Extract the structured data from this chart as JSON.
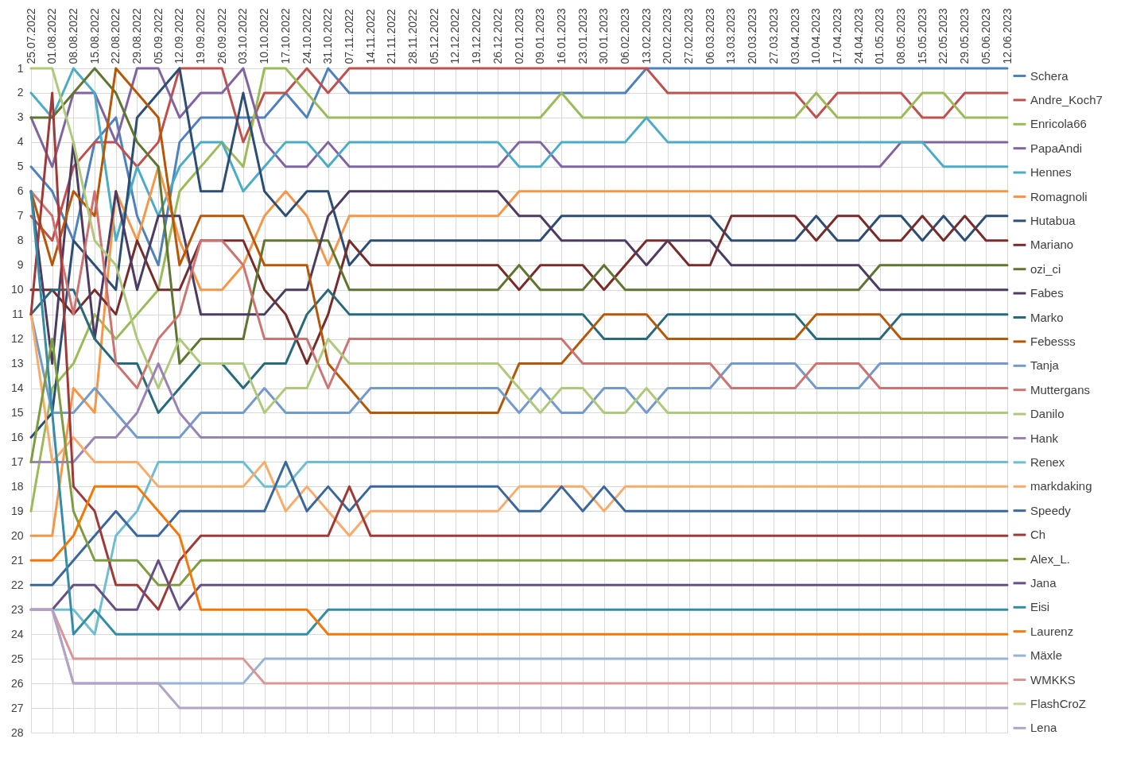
{
  "chart_data": {
    "type": "line",
    "categories": [
      "25.07.2022",
      "01.08.2022",
      "08.08.2022",
      "15.08.2022",
      "22.08.2022",
      "29.08.2022",
      "05.09.2022",
      "12.09.2022",
      "19.09.2022",
      "26.09.2022",
      "03.10.2022",
      "10.10.2022",
      "17.10.2022",
      "24.10.2022",
      "31.10.2022",
      "07.11.2022",
      "14.11.2022",
      "21.11.2022",
      "28.11.2022",
      "05.12.2022",
      "12.12.2022",
      "19.12.2022",
      "26.12.2022",
      "02.01.2023",
      "09.01.2023",
      "16.01.2023",
      "23.01.2023",
      "30.01.2023",
      "06.02.2023",
      "13.02.2023",
      "20.02.2023",
      "27.02.2023",
      "06.03.2023",
      "13.03.2023",
      "20.03.2023",
      "27.03.2023",
      "03.04.2023",
      "10.04.2023",
      "17.04.2023",
      "24.04.2023",
      "01.05.2023",
      "08.05.2023",
      "15.05.2023",
      "22.05.2023",
      "29.05.2023",
      "05.06.2023",
      "12.06.2023"
    ],
    "ylim": [
      28,
      1
    ],
    "yticks": [
      1,
      2,
      3,
      4,
      5,
      6,
      7,
      8,
      9,
      10,
      11,
      12,
      13,
      14,
      15,
      16,
      17,
      18,
      19,
      20,
      21,
      22,
      23,
      24,
      25,
      26,
      27,
      28
    ],
    "grid": true,
    "legend": "right",
    "line_style": "solid",
    "series": [
      {
        "name": "Schera",
        "color": "#4f81bd",
        "values": [
          5,
          6,
          8,
          4,
          3,
          7,
          9,
          4,
          3,
          3,
          3,
          3,
          2,
          3,
          1,
          2,
          2,
          2,
          2,
          2,
          2,
          2,
          2,
          2,
          2,
          2,
          2,
          2,
          2,
          1,
          1,
          1,
          1,
          1,
          1,
          1,
          1,
          1,
          1,
          1,
          1,
          1,
          1,
          1,
          1,
          1,
          1
        ]
      },
      {
        "name": "Andre_Koch7",
        "color": "#c0504d",
        "values": [
          7,
          8,
          5,
          4,
          4,
          5,
          4,
          1,
          1,
          1,
          4,
          2,
          2,
          1,
          2,
          1,
          1,
          1,
          1,
          1,
          1,
          1,
          1,
          1,
          1,
          1,
          1,
          1,
          1,
          1,
          2,
          2,
          2,
          2,
          2,
          2,
          2,
          3,
          2,
          2,
          2,
          2,
          3,
          3,
          2,
          2,
          2
        ]
      },
      {
        "name": "Enricola66",
        "color": "#9bbb59",
        "values": [
          19,
          14,
          13,
          11,
          12,
          11,
          10,
          6,
          5,
          4,
          5,
          1,
          1,
          2,
          3,
          3,
          3,
          3,
          3,
          3,
          3,
          3,
          3,
          3,
          3,
          2,
          3,
          3,
          3,
          3,
          3,
          3,
          3,
          3,
          3,
          3,
          3,
          2,
          3,
          3,
          3,
          3,
          2,
          2,
          3,
          3,
          3
        ]
      },
      {
        "name": "PapaAndi",
        "color": "#8064a2",
        "values": [
          3,
          5,
          2,
          2,
          4,
          1,
          1,
          3,
          2,
          2,
          1,
          4,
          5,
          5,
          4,
          5,
          5,
          5,
          5,
          5,
          5,
          5,
          5,
          4,
          4,
          5,
          5,
          5,
          5,
          5,
          5,
          5,
          5,
          5,
          5,
          5,
          5,
          5,
          5,
          5,
          5,
          4,
          4,
          4,
          4,
          4,
          4
        ]
      },
      {
        "name": "Hennes",
        "color": "#4bacc6",
        "values": [
          2,
          3,
          1,
          2,
          8,
          5,
          7,
          5,
          4,
          4,
          6,
          5,
          4,
          4,
          5,
          4,
          4,
          4,
          4,
          4,
          4,
          4,
          4,
          5,
          5,
          4,
          4,
          4,
          4,
          3,
          4,
          4,
          4,
          4,
          4,
          4,
          4,
          4,
          4,
          4,
          4,
          4,
          4,
          5,
          5,
          5,
          5
        ]
      },
      {
        "name": "Romagnoli",
        "color": "#f79646",
        "values": [
          20,
          20,
          14,
          15,
          6,
          8,
          5,
          8,
          10,
          10,
          9,
          7,
          6,
          7,
          9,
          7,
          7,
          7,
          7,
          7,
          7,
          7,
          7,
          6,
          6,
          6,
          6,
          6,
          6,
          6,
          6,
          6,
          6,
          6,
          6,
          6,
          6,
          6,
          6,
          6,
          6,
          6,
          6,
          6,
          6,
          6,
          6
        ]
      },
      {
        "name": "Hutabua",
        "color": "#2c4d75",
        "values": [
          16,
          15,
          8,
          9,
          10,
          3,
          2,
          1,
          6,
          6,
          2,
          6,
          7,
          6,
          6,
          9,
          8,
          8,
          8,
          8,
          8,
          8,
          8,
          8,
          8,
          7,
          7,
          7,
          7,
          7,
          7,
          7,
          7,
          8,
          8,
          8,
          8,
          7,
          8,
          8,
          7,
          7,
          8,
          7,
          8,
          7,
          7
        ]
      },
      {
        "name": "Mariano",
        "color": "#772c2a",
        "values": [
          10,
          10,
          11,
          10,
          11,
          8,
          10,
          10,
          8,
          8,
          8,
          10,
          11,
          13,
          11,
          8,
          9,
          9,
          9,
          9,
          9,
          9,
          9,
          10,
          9,
          9,
          9,
          10,
          9,
          8,
          8,
          9,
          9,
          7,
          7,
          7,
          7,
          8,
          7,
          7,
          8,
          8,
          7,
          8,
          7,
          8,
          8
        ]
      },
      {
        "name": "ozi_ci",
        "color": "#5f7530",
        "values": [
          3,
          3,
          2,
          1,
          2,
          4,
          5,
          13,
          12,
          12,
          12,
          8,
          8,
          8,
          8,
          10,
          10,
          10,
          10,
          10,
          10,
          10,
          10,
          9,
          10,
          10,
          10,
          9,
          10,
          10,
          10,
          10,
          10,
          10,
          10,
          10,
          10,
          10,
          10,
          10,
          9,
          9,
          9,
          9,
          9,
          9,
          9
        ]
      },
      {
        "name": "Fabes",
        "color": "#4d3b62",
        "values": [
          6,
          13,
          4,
          12,
          6,
          10,
          7,
          7,
          11,
          11,
          11,
          11,
          10,
          10,
          7,
          6,
          6,
          6,
          6,
          6,
          6,
          6,
          6,
          7,
          7,
          8,
          8,
          8,
          8,
          9,
          8,
          8,
          8,
          9,
          9,
          9,
          9,
          9,
          9,
          9,
          10,
          10,
          10,
          10,
          10,
          10,
          10
        ]
      },
      {
        "name": "Marko",
        "color": "#276a7c",
        "values": [
          11,
          10,
          10,
          12,
          13,
          13,
          15,
          14,
          13,
          13,
          14,
          13,
          13,
          11,
          10,
          11,
          11,
          11,
          11,
          11,
          11,
          11,
          11,
          11,
          11,
          11,
          11,
          12,
          12,
          12,
          11,
          11,
          11,
          11,
          11,
          11,
          11,
          12,
          12,
          12,
          12,
          11,
          11,
          11,
          11,
          11,
          11
        ]
      },
      {
        "name": "Febesss",
        "color": "#b65708",
        "values": [
          6,
          9,
          6,
          7,
          1,
          2,
          3,
          9,
          7,
          7,
          7,
          9,
          9,
          9,
          13,
          14,
          15,
          15,
          15,
          15,
          15,
          15,
          15,
          13,
          13,
          13,
          12,
          11,
          11,
          11,
          12,
          12,
          12,
          12,
          12,
          12,
          12,
          11,
          11,
          11,
          11,
          12,
          12,
          12,
          12,
          12,
          12
        ]
      },
      {
        "name": "Tanja",
        "color": "#729aca",
        "values": [
          11,
          15,
          15,
          14,
          15,
          16,
          16,
          16,
          15,
          15,
          15,
          14,
          15,
          15,
          15,
          15,
          14,
          14,
          14,
          14,
          14,
          14,
          14,
          15,
          14,
          15,
          15,
          14,
          14,
          15,
          14,
          14,
          14,
          13,
          13,
          13,
          13,
          14,
          14,
          14,
          13,
          13,
          13,
          13,
          13,
          13,
          13
        ]
      },
      {
        "name": "Muttergans",
        "color": "#cd7371",
        "values": [
          6,
          7,
          11,
          6,
          13,
          14,
          12,
          11,
          8,
          8,
          9,
          12,
          12,
          12,
          14,
          12,
          12,
          12,
          12,
          12,
          12,
          12,
          12,
          12,
          12,
          12,
          13,
          13,
          13,
          13,
          13,
          13,
          13,
          14,
          14,
          14,
          14,
          13,
          13,
          13,
          14,
          14,
          14,
          14,
          14,
          14,
          14
        ]
      },
      {
        "name": "Danilo",
        "color": "#afc97a",
        "values": [
          1,
          1,
          4,
          8,
          9,
          12,
          14,
          12,
          13,
          13,
          13,
          15,
          14,
          14,
          12,
          13,
          13,
          13,
          13,
          13,
          13,
          13,
          13,
          14,
          15,
          14,
          14,
          15,
          15,
          14,
          15,
          15,
          15,
          15,
          15,
          15,
          15,
          15,
          15,
          15,
          15,
          15,
          15,
          15,
          15,
          15,
          15
        ]
      },
      {
        "name": "Hank",
        "color": "#9983b5",
        "values": [
          17,
          17,
          17,
          16,
          16,
          15,
          13,
          15,
          16,
          16,
          16,
          16,
          16,
          16,
          16,
          16,
          16,
          16,
          16,
          16,
          16,
          16,
          16,
          16,
          16,
          16,
          16,
          16,
          16,
          16,
          16,
          16,
          16,
          16,
          16,
          16,
          16,
          16,
          16,
          16,
          16,
          16,
          16,
          16,
          16,
          16,
          16
        ]
      },
      {
        "name": "Renex",
        "color": "#6fbdd1",
        "values": [
          23,
          23,
          23,
          24,
          20,
          19,
          17,
          17,
          17,
          17,
          17,
          18,
          18,
          17,
          17,
          17,
          17,
          17,
          17,
          17,
          17,
          17,
          17,
          17,
          17,
          17,
          17,
          17,
          17,
          17,
          17,
          17,
          17,
          17,
          17,
          17,
          17,
          17,
          17,
          17,
          17,
          17,
          17,
          17,
          17,
          17,
          17
        ]
      },
      {
        "name": "markdaking",
        "color": "#f9ab6b",
        "values": [
          11,
          17,
          16,
          17,
          17,
          17,
          18,
          18,
          18,
          18,
          18,
          17,
          19,
          18,
          19,
          20,
          19,
          19,
          19,
          19,
          19,
          19,
          19,
          18,
          18,
          18,
          18,
          19,
          18,
          18,
          18,
          18,
          18,
          18,
          18,
          18,
          18,
          18,
          18,
          18,
          18,
          18,
          18,
          18,
          18,
          18,
          18
        ]
      },
      {
        "name": "Speedy",
        "color": "#3a679c",
        "values": [
          22,
          22,
          21,
          20,
          19,
          20,
          20,
          19,
          19,
          19,
          19,
          19,
          17,
          19,
          18,
          19,
          18,
          18,
          18,
          18,
          18,
          18,
          18,
          19,
          19,
          18,
          19,
          18,
          19,
          19,
          19,
          19,
          19,
          19,
          19,
          19,
          19,
          19,
          19,
          19,
          19,
          19,
          19,
          19,
          19,
          19,
          19
        ]
      },
      {
        "name": "Ch",
        "color": "#9e3a38",
        "values": [
          11,
          2,
          18,
          19,
          22,
          22,
          23,
          21,
          20,
          20,
          20,
          20,
          20,
          20,
          20,
          18,
          20,
          20,
          20,
          20,
          20,
          20,
          20,
          20,
          20,
          20,
          20,
          20,
          20,
          20,
          20,
          20,
          20,
          20,
          20,
          20,
          20,
          20,
          20,
          20,
          20,
          20,
          20,
          20,
          20,
          20,
          20
        ]
      },
      {
        "name": "Alex_L.",
        "color": "#7e9c40",
        "values": [
          17,
          12,
          19,
          21,
          21,
          21,
          22,
          22,
          21,
          21,
          21,
          21,
          21,
          21,
          21,
          21,
          21,
          21,
          21,
          21,
          21,
          21,
          21,
          21,
          21,
          21,
          21,
          21,
          21,
          21,
          21,
          21,
          21,
          21,
          21,
          21,
          21,
          21,
          21,
          21,
          21,
          21,
          21,
          21,
          21,
          21,
          21
        ]
      },
      {
        "name": "Jana",
        "color": "#664f83",
        "values": [
          23,
          23,
          22,
          22,
          23,
          23,
          21,
          23,
          22,
          22,
          22,
          22,
          22,
          22,
          22,
          22,
          22,
          22,
          22,
          22,
          22,
          22,
          22,
          22,
          22,
          22,
          22,
          22,
          22,
          22,
          22,
          22,
          22,
          22,
          22,
          22,
          22,
          22,
          22,
          22,
          22,
          22,
          22,
          22,
          22,
          22,
          22
        ]
      },
      {
        "name": "Eisi",
        "color": "#358da5",
        "values": [
          6,
          15,
          24,
          23,
          24,
          24,
          24,
          24,
          24,
          24,
          24,
          24,
          24,
          24,
          23,
          23,
          23,
          23,
          23,
          23,
          23,
          23,
          23,
          23,
          23,
          23,
          23,
          23,
          23,
          23,
          23,
          23,
          23,
          23,
          23,
          23,
          23,
          23,
          23,
          23,
          23,
          23,
          23,
          23,
          23,
          23,
          23
        ]
      },
      {
        "name": "Laurenz",
        "color": "#f57708",
        "values": [
          21,
          21,
          20,
          18,
          18,
          18,
          19,
          20,
          23,
          23,
          23,
          23,
          23,
          23,
          24,
          24,
          24,
          24,
          24,
          24,
          24,
          24,
          24,
          24,
          24,
          24,
          24,
          24,
          24,
          24,
          24,
          24,
          24,
          24,
          24,
          24,
          24,
          24,
          24,
          24,
          24,
          24,
          24,
          24,
          24,
          24,
          24
        ]
      },
      {
        "name": "Mäxle",
        "color": "#95b3d7",
        "values": [
          23,
          23,
          26,
          26,
          26,
          26,
          26,
          26,
          26,
          26,
          26,
          25,
          25,
          25,
          25,
          25,
          25,
          25,
          25,
          25,
          25,
          25,
          25,
          25,
          25,
          25,
          25,
          25,
          25,
          25,
          25,
          25,
          25,
          25,
          25,
          25,
          25,
          25,
          25,
          25,
          25,
          25,
          25,
          25,
          25,
          25,
          25
        ]
      },
      {
        "name": "WMKKS",
        "color": "#d99694",
        "values": [
          23,
          23,
          25,
          25,
          25,
          25,
          25,
          25,
          25,
          25,
          25,
          26,
          26,
          26,
          26,
          26,
          26,
          26,
          26,
          26,
          26,
          26,
          26,
          26,
          26,
          26,
          26,
          26,
          26,
          26,
          26,
          26,
          26,
          26,
          26,
          26,
          26,
          26,
          26,
          26,
          26,
          26,
          26,
          26,
          26,
          26,
          26
        ]
      },
      {
        "name": "FlashCroZ",
        "color": "#c3d69b",
        "values": [
          null,
          null,
          null,
          null,
          null,
          null,
          null,
          null,
          null,
          null,
          null,
          null,
          null,
          null,
          null,
          null,
          null,
          null,
          null,
          null,
          null,
          null,
          null,
          null,
          null,
          null,
          null,
          null,
          null,
          null,
          null,
          null,
          null,
          null,
          null,
          null,
          null,
          null,
          null,
          null,
          null,
          null,
          null,
          null,
          null,
          null,
          null
        ]
      },
      {
        "name": "Lena",
        "color": "#b3a2c7",
        "values": [
          23,
          23,
          26,
          26,
          26,
          26,
          26,
          27,
          27,
          27,
          27,
          27,
          27,
          27,
          27,
          27,
          27,
          27,
          27,
          27,
          27,
          27,
          27,
          27,
          27,
          27,
          27,
          27,
          27,
          27,
          27,
          27,
          27,
          27,
          27,
          27,
          27,
          27,
          27,
          27,
          27,
          27,
          27,
          27,
          27,
          27,
          27
        ]
      }
    ]
  }
}
